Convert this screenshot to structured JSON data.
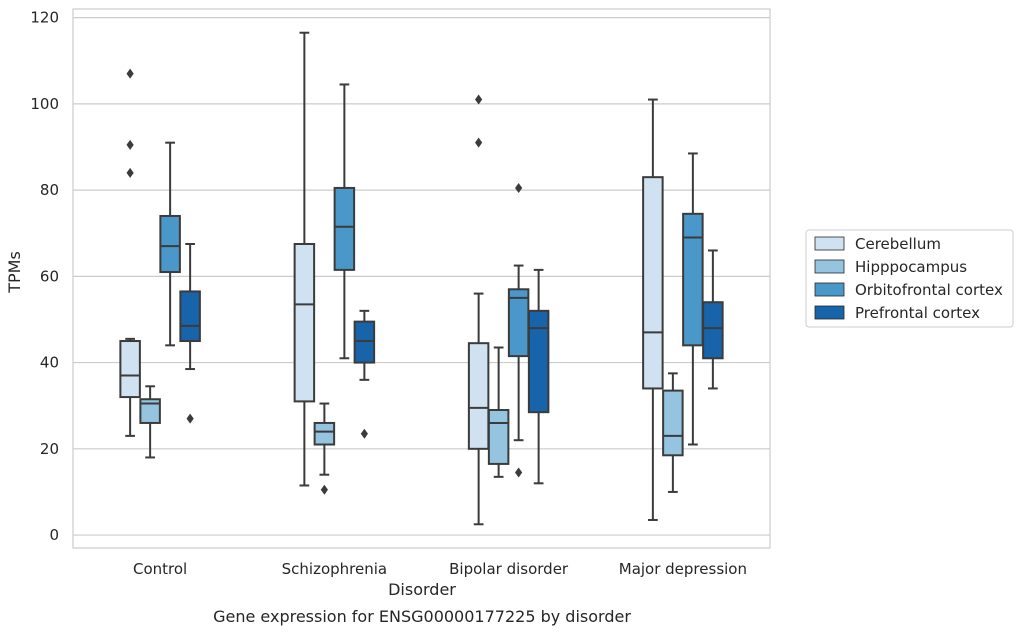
{
  "caption": "Gene expression for ENSG00000177225 by disorder",
  "chart_data": {
    "type": "box",
    "title": "",
    "xlabel": "Disorder",
    "ylabel": "TPMs",
    "ylim": [
      -3,
      122
    ],
    "yticks": [
      0,
      20,
      40,
      60,
      80,
      100,
      120
    ],
    "grid": "horizontal",
    "legend_placement": "right-outside",
    "categories": [
      "Control",
      "Schizophrenia",
      "Bipolar disorder",
      "Major depression"
    ],
    "series": [
      {
        "name": "Cerebellum",
        "color": "#d0e1f2",
        "boxes": [
          {
            "whislo": 23,
            "q1": 32,
            "med": 37,
            "q3": 45,
            "whishi": 45.5,
            "fliers": [
              84,
              90.5,
              107
            ]
          },
          {
            "whislo": 11.5,
            "q1": 31,
            "med": 53.5,
            "q3": 67.5,
            "whishi": 116.5,
            "fliers": []
          },
          {
            "whislo": 2.5,
            "q1": 20,
            "med": 29.5,
            "q3": 44.5,
            "whishi": 56,
            "fliers": [
              91,
              101
            ]
          },
          {
            "whislo": 3.5,
            "q1": 34,
            "med": 47,
            "q3": 83,
            "whishi": 101,
            "fliers": []
          }
        ]
      },
      {
        "name": "Hipppocampus",
        "color": "#94c4df",
        "boxes": [
          {
            "whislo": 18,
            "q1": 26,
            "med": 30.5,
            "q3": 31.5,
            "whishi": 34.5,
            "fliers": []
          },
          {
            "whislo": 14,
            "q1": 21,
            "med": 24,
            "q3": 26,
            "whishi": 30.5,
            "fliers": [
              10.5
            ]
          },
          {
            "whislo": 13.5,
            "q1": 16.5,
            "med": 26,
            "q3": 29,
            "whishi": 43.5,
            "fliers": []
          },
          {
            "whislo": 10,
            "q1": 18.5,
            "med": 23,
            "q3": 33.5,
            "whishi": 37.5,
            "fliers": []
          }
        ]
      },
      {
        "name": "Orbitofrontal cortex",
        "color": "#4a98c9",
        "boxes": [
          {
            "whislo": 44,
            "q1": 61,
            "med": 67,
            "q3": 74,
            "whishi": 91,
            "fliers": []
          },
          {
            "whislo": 41,
            "q1": 61.5,
            "med": 71.5,
            "q3": 80.5,
            "whishi": 104.5,
            "fliers": []
          },
          {
            "whislo": 22,
            "q1": 41.5,
            "med": 55,
            "q3": 57,
            "whishi": 62.5,
            "fliers": [
              14.5,
              80.5
            ]
          },
          {
            "whislo": 21,
            "q1": 44,
            "med": 69,
            "q3": 74.5,
            "whishi": 88.5,
            "fliers": []
          }
        ]
      },
      {
        "name": "Prefrontal cortex",
        "color": "#1764ab",
        "boxes": [
          {
            "whislo": 38.5,
            "q1": 45,
            "med": 48.5,
            "q3": 56.5,
            "whishi": 67.5,
            "fliers": [
              27
            ]
          },
          {
            "whislo": 36,
            "q1": 40,
            "med": 45,
            "q3": 49.5,
            "whishi": 52,
            "fliers": [
              23.5
            ]
          },
          {
            "whislo": 12,
            "q1": 28.5,
            "med": 48,
            "q3": 52,
            "whishi": 61.5,
            "fliers": []
          },
          {
            "whislo": 34,
            "q1": 41,
            "med": 48,
            "q3": 54,
            "whishi": 66,
            "fliers": []
          }
        ]
      }
    ]
  }
}
